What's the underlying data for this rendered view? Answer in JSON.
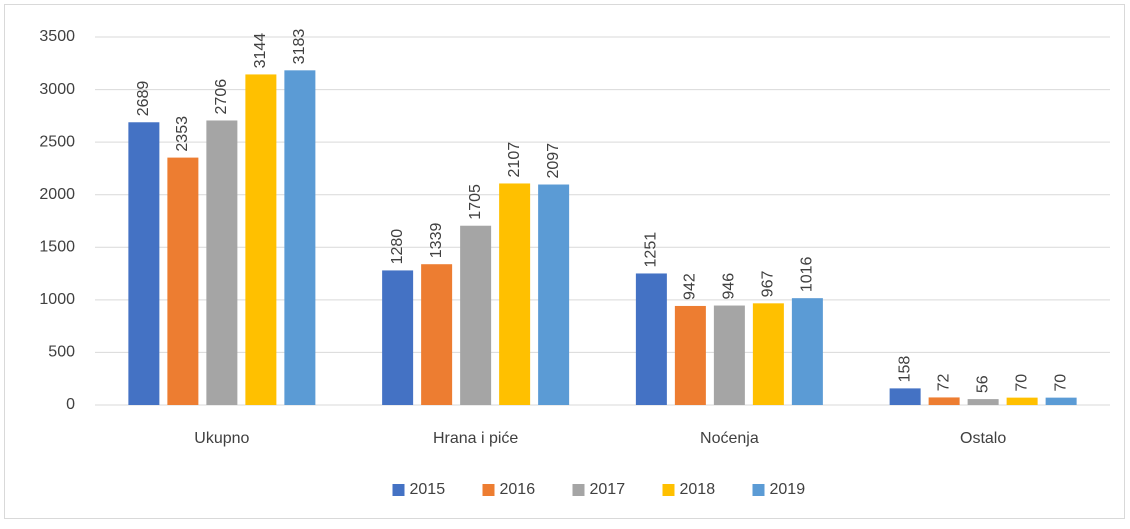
{
  "chart_data": {
    "type": "bar",
    "categories": [
      "Ukupno",
      "Hrana i piće",
      "Noćenja",
      "Ostalo"
    ],
    "series": [
      {
        "name": "2015",
        "color": "#4472c4",
        "values": [
          2689,
          1280,
          1251,
          158
        ]
      },
      {
        "name": "2016",
        "color": "#ed7d31",
        "values": [
          2353,
          1339,
          942,
          72
        ]
      },
      {
        "name": "2017",
        "color": "#a5a5a5",
        "values": [
          2706,
          1705,
          946,
          56
        ]
      },
      {
        "name": "2018",
        "color": "#ffc000",
        "values": [
          3144,
          2107,
          967,
          70
        ]
      },
      {
        "name": "2019",
        "color": "#5b9bd5",
        "values": [
          3183,
          2097,
          1016,
          70
        ]
      }
    ],
    "ylim": [
      0,
      3500
    ],
    "yticks": [
      0,
      500,
      1000,
      1500,
      2000,
      2500,
      3000,
      3500
    ],
    "grid": true,
    "legend": "bottom"
  }
}
